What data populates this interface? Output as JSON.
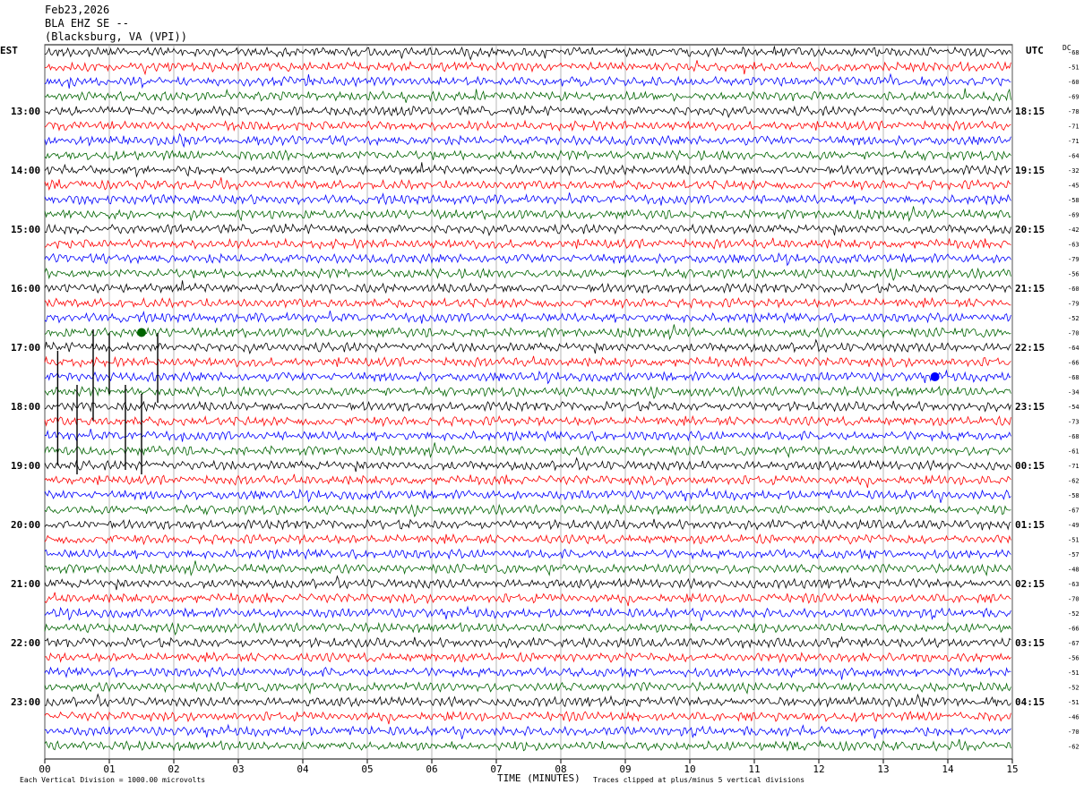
{
  "header": {
    "date": "Feb23,2026",
    "station": "BLA EHZ SE --",
    "location": "(Blacksburg, VA (VPI))"
  },
  "left_timezone": "EST",
  "right_timezone": "UTC",
  "dc_label": "DC",
  "footer": {
    "scale_note": "Each Vertical Division = 1000.00 microvolts",
    "xlabel": "TIME (MINUTES)",
    "clip_note": "Traces clipped at plus/minus 5 vertical divisions"
  },
  "colors": {
    "row0": "#000000",
    "row1": "#ff0000",
    "row2": "#0000ff",
    "row3": "#006400"
  },
  "chart_data": {
    "type": "line",
    "title": "Feb23,2026 BLA EHZ SE -- (Blacksburg, VA (VPI))",
    "xlabel": "TIME (MINUTES)",
    "xlim": [
      0,
      15
    ],
    "x_ticks": [
      "00",
      "01",
      "02",
      "03",
      "04",
      "05",
      "06",
      "07",
      "08",
      "09",
      "10",
      "11",
      "12",
      "13",
      "14",
      "15"
    ],
    "rows_per_hour": 4,
    "minutes_per_row": 15,
    "left_hour_labels": [
      "13:00",
      "14:00",
      "15:00",
      "16:00",
      "17:00",
      "18:00",
      "19:00",
      "20:00",
      "21:00",
      "22:00",
      "23:00"
    ],
    "right_hour_labels": [
      "18:15",
      "19:15",
      "20:15",
      "21:15",
      "22:15",
      "23:15",
      "00:15",
      "01:15",
      "02:15",
      "03:15",
      "04:15"
    ],
    "dc_offsets": [
      -68,
      -51,
      -60,
      -69,
      -78,
      -71,
      -71,
      -64,
      -32,
      -45,
      -58,
      -69,
      -42,
      -63,
      -79,
      -56,
      -60,
      -79,
      -52,
      -70,
      -64,
      -66,
      -68,
      -34,
      -54,
      -73,
      -68,
      -61,
      -71,
      -62,
      -58,
      -67,
      -49,
      -51,
      -57,
      -48,
      -63,
      -70,
      -52,
      -66,
      -67,
      -56,
      -51,
      -52,
      -51,
      -46,
      -70,
      -62
    ],
    "trace_colors": [
      "black",
      "red",
      "blue",
      "green"
    ],
    "events": [
      {
        "row": 19,
        "minute": 1.5,
        "note": "local burst"
      },
      {
        "row": 22,
        "minute": 13.8,
        "note": "local burst"
      }
    ],
    "grid": true
  }
}
